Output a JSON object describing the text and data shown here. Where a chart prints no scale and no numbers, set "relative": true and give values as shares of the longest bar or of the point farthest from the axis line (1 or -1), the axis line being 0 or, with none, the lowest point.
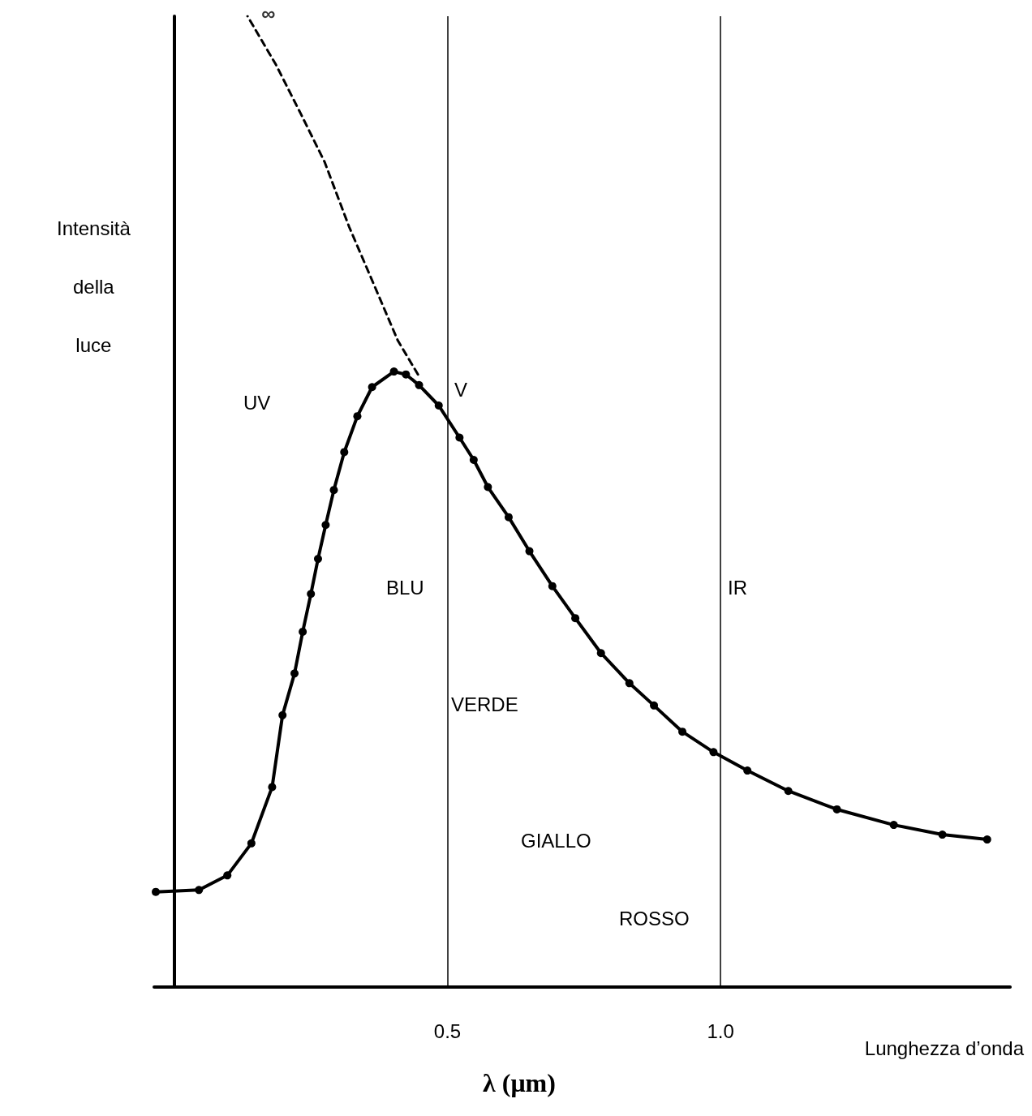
{
  "chart_data": {
    "type": "line",
    "relative": true,
    "xlabel": "Lunghezza d’onda",
    "ylabel": "Intensità della luce",
    "xlim": [
      -0.037,
      1.53
    ],
    "xticks": [
      0.5,
      {
        "value": 1,
        "label": "1.0"
      }
    ],
    "series": [
      {
        "color": "#000000",
        "marker": "circle",
        "line_style": "solid",
        "x": [
          -0.034,
          0.045,
          0.097,
          0.141,
          0.179,
          0.198,
          0.22,
          0.235,
          0.25,
          0.263,
          0.277,
          0.292,
          0.311,
          0.335,
          0.362,
          0.402,
          0.424,
          0.448,
          0.484,
          0.522,
          0.548,
          0.574,
          0.612,
          0.65,
          0.692,
          0.734,
          0.781,
          0.833,
          0.878,
          0.93,
          0.987,
          1.049,
          1.124,
          1.213,
          1.317,
          1.406,
          1.488
        ],
        "values": [
          0.098,
          0.1,
          0.115,
          0.148,
          0.206,
          0.28,
          0.323,
          0.366,
          0.405,
          0.441,
          0.476,
          0.512,
          0.551,
          0.588,
          0.618,
          0.634,
          0.631,
          0.62,
          0.599,
          0.566,
          0.543,
          0.515,
          0.484,
          0.449,
          0.413,
          0.38,
          0.344,
          0.313,
          0.29,
          0.263,
          0.242,
          0.223,
          0.202,
          0.183,
          0.167,
          0.157,
          0.152
        ]
      },
      {
        "color": "#000000",
        "marker": "none",
        "line_style": "dashed",
        "x": [
          0.446,
          0.409,
          0.365,
          0.32,
          0.275,
          0.231,
          0.186,
          0.134
        ],
        "values": [
          0.631,
          0.666,
          0.724,
          0.783,
          0.85,
          0.9,
          0.95,
          1.0
        ]
      }
    ],
    "ref_lines": [
      {
        "axis": "x",
        "value": 0.5,
        "color": "#000000"
      },
      {
        "axis": "x",
        "value": 1,
        "color": "#000000"
      }
    ],
    "annotations": [
      {
        "text": "∞",
        "x": 0.134,
        "y": 1.0
      },
      "UV",
      "V",
      "BLU",
      "VERDE",
      "GIALLO",
      "ROSSO",
      "IR",
      "λ (μm)"
    ]
  }
}
